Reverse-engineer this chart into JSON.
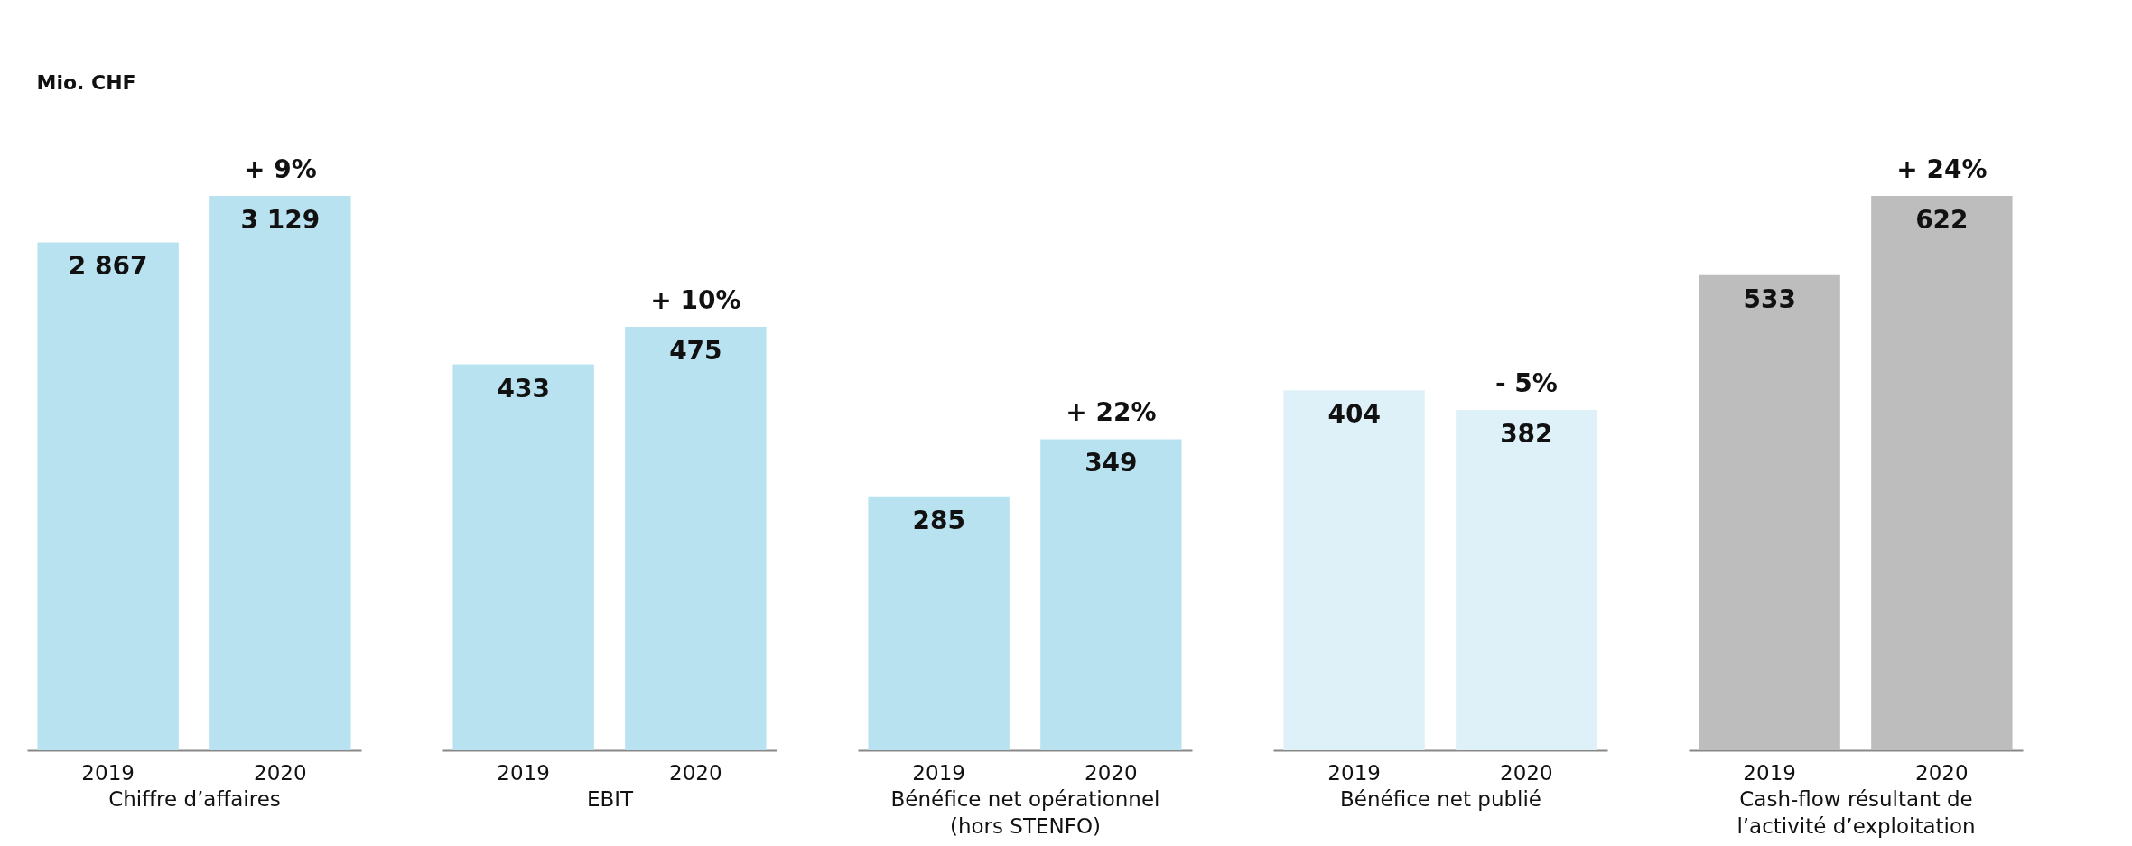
{
  "chart_data": [
    {
      "type": "bar",
      "ylabel": "Mio. CHF",
      "xlabel": "Chiffre d’affaires",
      "categories": [
        "2019",
        "2020"
      ],
      "values": [
        2867,
        3129
      ],
      "colors": [
        "#b8e2f0",
        "#b8e2f0"
      ],
      "value_labels": [
        "2 867",
        "3 129"
      ],
      "annotations": [
        "+ 9%"
      ]
    },
    {
      "type": "bar",
      "xlabel": "EBIT",
      "categories": [
        "2019",
        "2020"
      ],
      "values": [
        433,
        475
      ],
      "colors": [
        "#b8e2f0",
        "#b8e2f0"
      ],
      "data_labels": true,
      "annotations": [
        "+ 10%"
      ]
    },
    {
      "type": "bar",
      "xlabel": "Bénéfice net opérationnel (hors STENFO)",
      "categories": [
        "2019",
        "2020"
      ],
      "values": [
        285,
        349
      ],
      "colors": [
        "#b8e2f0",
        "#b8e2f0"
      ],
      "data_labels": true,
      "annotations": [
        "+ 22%"
      ]
    },
    {
      "type": "bar",
      "xlabel": "Bénéfice net publié",
      "categories": [
        "2019",
        "2020"
      ],
      "values": [
        404,
        382
      ],
      "colors": [
        "#dff1f8",
        "#dff1f8"
      ],
      "data_labels": true,
      "annotations": [
        "- 5%"
      ]
    },
    {
      "type": "bar",
      "xlabel": "Cash-flow résultant de l’activité d’exploitation",
      "categories": [
        "2019",
        "2020"
      ],
      "values": [
        533,
        622
      ],
      "colors": [
        "#bdbdbd",
        "#bdbdbd"
      ],
      "data_labels": true,
      "annotations": [
        "+ 24%"
      ]
    }
  ]
}
